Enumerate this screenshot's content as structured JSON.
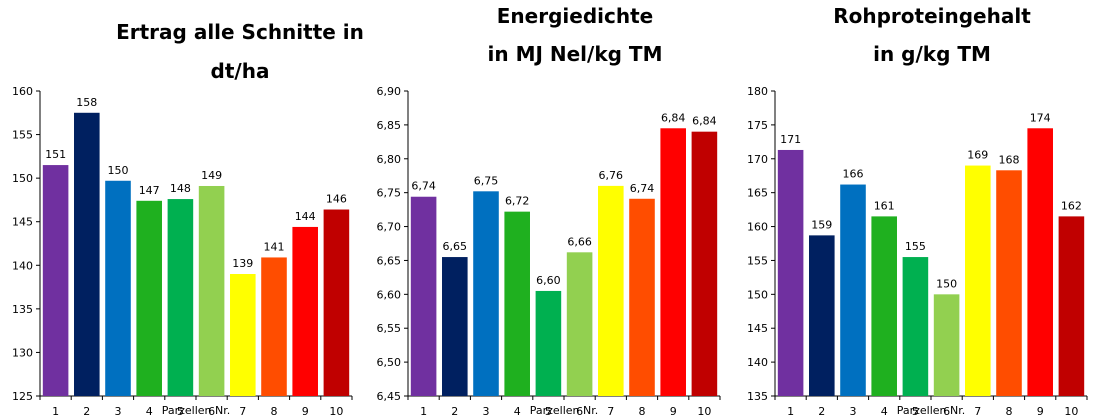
{
  "chart_data": [
    {
      "type": "bar",
      "title_lines": [
        "Ertrag alle Schnitte in",
        "dt/ha"
      ],
      "xlabel": "Parzellen Nr.",
      "ylabel": "",
      "categories": [
        "1",
        "2",
        "3",
        "4",
        "5",
        "6",
        "7",
        "8",
        "9",
        "10"
      ],
      "values": [
        151.5,
        157.5,
        149.7,
        147.4,
        147.6,
        149.1,
        139.0,
        140.9,
        144.4,
        146.4
      ],
      "data_labels": [
        "151",
        "158",
        "150",
        "147",
        "148",
        "149",
        "139",
        "141",
        "144",
        "146"
      ],
      "colors": [
        "#7030a0",
        "#002060",
        "#0070c0",
        "#1fb01f",
        "#00b050",
        "#92d050",
        "#ffff00",
        "#ff4d00",
        "#ff0000",
        "#c00000"
      ],
      "ylim": [
        125,
        160
      ],
      "ytick_labels": [
        "125",
        "130",
        "135",
        "140",
        "145",
        "150",
        "155",
        "160"
      ],
      "grid": false
    },
    {
      "type": "bar",
      "title_lines": [
        "Energiedichte",
        "in MJ Nel/kg TM"
      ],
      "xlabel": "Parzellen Nr.",
      "ylabel": "",
      "categories": [
        "1",
        "2",
        "3",
        "4",
        "5",
        "6",
        "7",
        "8",
        "9",
        "10"
      ],
      "values": [
        6.744,
        6.655,
        6.752,
        6.722,
        6.605,
        6.662,
        6.76,
        6.741,
        6.845,
        6.84
      ],
      "data_labels": [
        "6,74",
        "6,65",
        "6,75",
        "6,72",
        "6,60",
        "6,66",
        "6,76",
        "6,74",
        "6,84",
        "6,84"
      ],
      "colors": [
        "#7030a0",
        "#002060",
        "#0070c0",
        "#1fb01f",
        "#00b050",
        "#92d050",
        "#ffff00",
        "#ff4d00",
        "#ff0000",
        "#c00000"
      ],
      "ylim": [
        6.45,
        6.9
      ],
      "ytick_labels": [
        "6,45",
        "6,50",
        "6,55",
        "6,60",
        "6,65",
        "6,70",
        "6,75",
        "6,80",
        "6,85",
        "6,90"
      ],
      "grid": false
    },
    {
      "type": "bar",
      "title_lines": [
        "Rohproteingehalt",
        "in g/kg TM"
      ],
      "xlabel": "Parzellen Nr.",
      "ylabel": "",
      "categories": [
        "1",
        "2",
        "3",
        "4",
        "5",
        "6",
        "7",
        "8",
        "9",
        "10"
      ],
      "values": [
        171.3,
        158.7,
        166.2,
        161.5,
        155.5,
        150.0,
        169.0,
        168.3,
        174.5,
        161.5
      ],
      "data_labels": [
        "171",
        "159",
        "166",
        "161",
        "155",
        "150",
        "169",
        "168",
        "174",
        "162"
      ],
      "colors": [
        "#7030a0",
        "#002060",
        "#0070c0",
        "#1fb01f",
        "#00b050",
        "#92d050",
        "#ffff00",
        "#ff4d00",
        "#ff0000",
        "#c00000"
      ],
      "ylim": [
        135,
        180
      ],
      "ytick_labels": [
        "135",
        "140",
        "145",
        "150",
        "155",
        "160",
        "165",
        "170",
        "175",
        "180"
      ],
      "grid": false
    }
  ]
}
